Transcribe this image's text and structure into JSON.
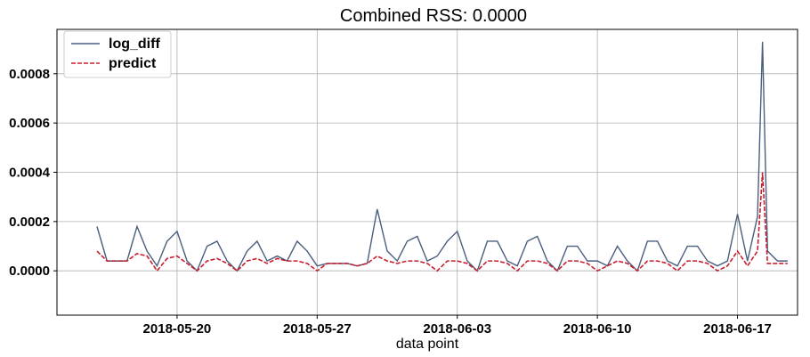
{
  "chart_data": {
    "type": "line",
    "title": "Combined RSS: 0.0000",
    "xlabel": "data point",
    "ylabel": "",
    "x_range": [
      "2018-05-14",
      "2018-06-20"
    ],
    "ylim": [
      -0.00018,
      0.00098
    ],
    "x_ticks": [
      "2018-05-20",
      "2018-05-27",
      "2018-06-03",
      "2018-06-10",
      "2018-06-17"
    ],
    "y_ticks": [
      0.0,
      0.0002,
      0.0004,
      0.0006,
      0.0008
    ],
    "y_tick_labels": [
      "0.0000",
      "0.0002",
      "0.0004",
      "0.0006",
      "0.0008"
    ],
    "grid": true,
    "legend_position": "top-left",
    "colors": {
      "log_diff": "#4a5e7e",
      "predict": "#c81e2e",
      "grid": "#b0b0b0"
    },
    "series": [
      {
        "name": "log_diff",
        "style": "solid",
        "x": [
          "2018-05-16",
          "2018-05-16 12:00",
          "2018-05-17",
          "2018-05-17 12:00",
          "2018-05-18",
          "2018-05-18 12:00",
          "2018-05-19",
          "2018-05-19 12:00",
          "2018-05-20",
          "2018-05-20 12:00",
          "2018-05-21",
          "2018-05-21 12:00",
          "2018-05-22",
          "2018-05-22 12:00",
          "2018-05-23",
          "2018-05-23 12:00",
          "2018-05-24",
          "2018-05-24 12:00",
          "2018-05-25",
          "2018-05-25 12:00",
          "2018-05-26",
          "2018-05-26 12:00",
          "2018-05-27",
          "2018-05-27 12:00",
          "2018-05-28",
          "2018-05-28 12:00",
          "2018-05-29",
          "2018-05-29 12:00",
          "2018-05-30",
          "2018-05-30 12:00",
          "2018-05-31",
          "2018-05-31 12:00",
          "2018-06-01",
          "2018-06-01 12:00",
          "2018-06-02",
          "2018-06-02 12:00",
          "2018-06-03",
          "2018-06-03 12:00",
          "2018-06-04",
          "2018-06-04 12:00",
          "2018-06-05",
          "2018-06-05 12:00",
          "2018-06-06",
          "2018-06-06 12:00",
          "2018-06-07",
          "2018-06-07 12:00",
          "2018-06-08",
          "2018-06-08 12:00",
          "2018-06-09",
          "2018-06-09 12:00",
          "2018-06-10",
          "2018-06-10 12:00",
          "2018-06-11",
          "2018-06-11 12:00",
          "2018-06-12",
          "2018-06-12 12:00",
          "2018-06-13",
          "2018-06-13 12:00",
          "2018-06-14",
          "2018-06-14 12:00",
          "2018-06-15",
          "2018-06-15 12:00",
          "2018-06-16",
          "2018-06-16 12:00",
          "2018-06-17",
          "2018-06-17 12:00",
          "2018-06-18",
          "2018-06-18 06:00",
          "2018-06-18 12:00",
          "2018-06-19",
          "2018-06-19 12:00"
        ],
        "y": [
          0.00018,
          4e-05,
          4e-05,
          4e-05,
          0.00018,
          8e-05,
          2e-05,
          0.00012,
          0.00016,
          4e-05,
          0.0,
          0.0001,
          0.00012,
          4e-05,
          0.0,
          8e-05,
          0.00012,
          4e-05,
          6e-05,
          4e-05,
          0.00012,
          8e-05,
          2e-05,
          3e-05,
          3e-05,
          3e-05,
          2e-05,
          3e-05,
          0.00025,
          8e-05,
          4e-05,
          0.00012,
          0.00014,
          4e-05,
          6e-05,
          0.00012,
          0.00016,
          4e-05,
          0.0,
          0.00012,
          0.00012,
          4e-05,
          2e-05,
          0.00012,
          0.00014,
          4e-05,
          0.0,
          0.0001,
          0.0001,
          4e-05,
          4e-05,
          2e-05,
          0.0001,
          4e-05,
          0.0,
          0.00012,
          0.00012,
          4e-05,
          2e-05,
          0.0001,
          0.0001,
          4e-05,
          2e-05,
          4e-05,
          0.00023,
          4e-05,
          0.00022,
          0.00093,
          8e-05,
          4e-05,
          4e-05
        ]
      },
      {
        "name": "predict",
        "style": "dashed",
        "x": [
          "2018-05-16",
          "2018-05-16 12:00",
          "2018-05-17",
          "2018-05-17 12:00",
          "2018-05-18",
          "2018-05-18 12:00",
          "2018-05-19",
          "2018-05-19 12:00",
          "2018-05-20",
          "2018-05-20 12:00",
          "2018-05-21",
          "2018-05-21 12:00",
          "2018-05-22",
          "2018-05-22 12:00",
          "2018-05-23",
          "2018-05-23 12:00",
          "2018-05-24",
          "2018-05-24 12:00",
          "2018-05-25",
          "2018-05-25 12:00",
          "2018-05-26",
          "2018-05-26 12:00",
          "2018-05-27",
          "2018-05-27 12:00",
          "2018-05-28",
          "2018-05-28 12:00",
          "2018-05-29",
          "2018-05-29 12:00",
          "2018-05-30",
          "2018-05-30 12:00",
          "2018-05-31",
          "2018-05-31 12:00",
          "2018-06-01",
          "2018-06-01 12:00",
          "2018-06-02",
          "2018-06-02 12:00",
          "2018-06-03",
          "2018-06-03 12:00",
          "2018-06-04",
          "2018-06-04 12:00",
          "2018-06-05",
          "2018-06-05 12:00",
          "2018-06-06",
          "2018-06-06 12:00",
          "2018-06-07",
          "2018-06-07 12:00",
          "2018-06-08",
          "2018-06-08 12:00",
          "2018-06-09",
          "2018-06-09 12:00",
          "2018-06-10",
          "2018-06-10 12:00",
          "2018-06-11",
          "2018-06-11 12:00",
          "2018-06-12",
          "2018-06-12 12:00",
          "2018-06-13",
          "2018-06-13 12:00",
          "2018-06-14",
          "2018-06-14 12:00",
          "2018-06-15",
          "2018-06-15 12:00",
          "2018-06-16",
          "2018-06-16 12:00",
          "2018-06-17",
          "2018-06-17 12:00",
          "2018-06-18",
          "2018-06-18 06:00",
          "2018-06-18 12:00",
          "2018-06-19",
          "2018-06-19 12:00"
        ],
        "y": [
          8e-05,
          4e-05,
          4e-05,
          4e-05,
          7e-05,
          6e-05,
          0.0,
          5e-05,
          6e-05,
          3e-05,
          0.0,
          4e-05,
          5e-05,
          3e-05,
          0.0,
          4e-05,
          5e-05,
          3e-05,
          5e-05,
          4e-05,
          4e-05,
          3e-05,
          0.0,
          3e-05,
          3e-05,
          3e-05,
          2e-05,
          3e-05,
          6e-05,
          4e-05,
          3e-05,
          4e-05,
          4e-05,
          3e-05,
          0.0,
          4e-05,
          4e-05,
          3e-05,
          0.0,
          4e-05,
          4e-05,
          3e-05,
          0.0,
          4e-05,
          4e-05,
          3e-05,
          0.0,
          4e-05,
          4e-05,
          3e-05,
          0.0,
          2e-05,
          4e-05,
          3e-05,
          0.0,
          4e-05,
          4e-05,
          3e-05,
          0.0,
          4e-05,
          4e-05,
          3e-05,
          0.0,
          2e-05,
          8e-05,
          2e-05,
          8e-05,
          0.0004,
          3e-05,
          3e-05,
          3e-05
        ]
      }
    ]
  }
}
